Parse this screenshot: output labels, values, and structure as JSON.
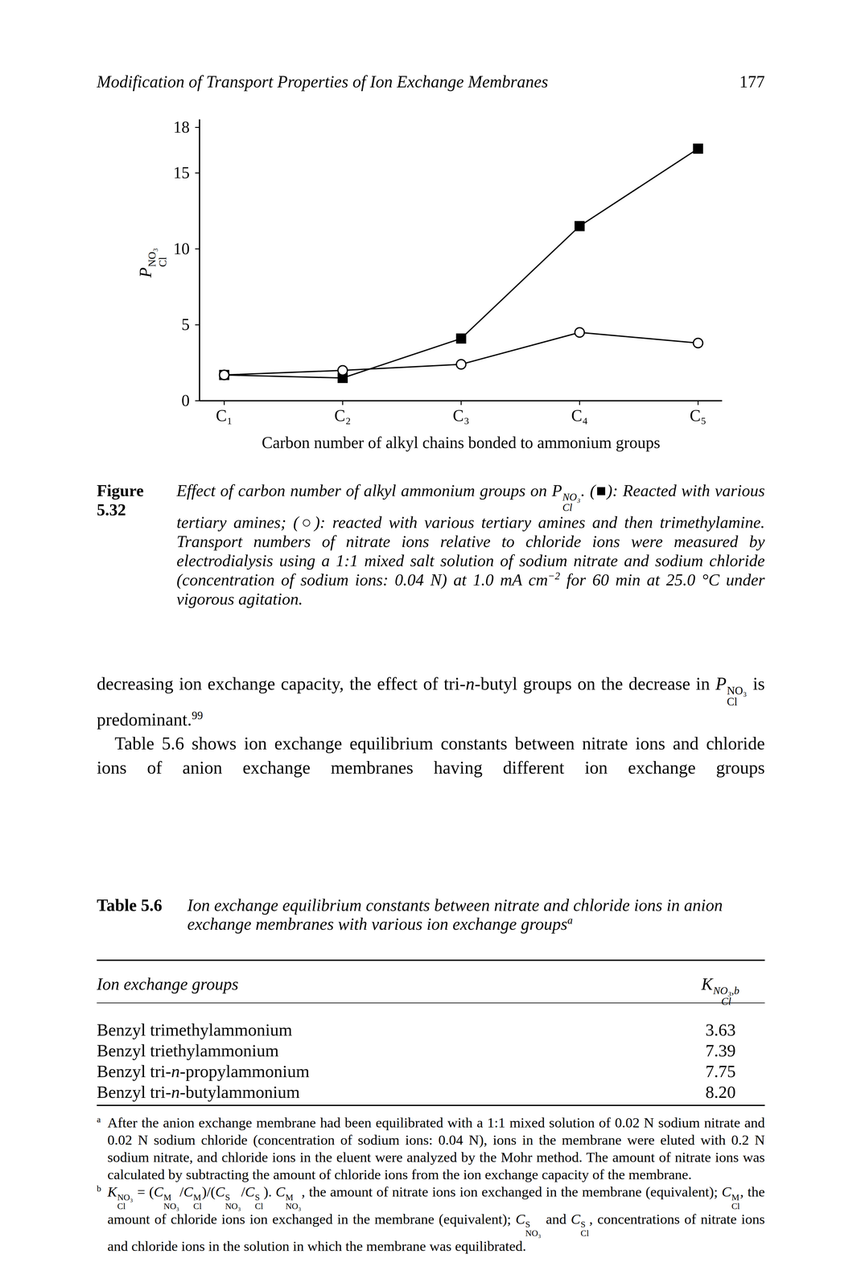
{
  "header": {
    "title": "Modification of Transport Properties of Ion Exchange Membranes",
    "page": "177"
  },
  "chart_data": {
    "type": "line",
    "x_label": "Carbon number of alkyl chains bonded to ammonium groups",
    "y_label": {
      "base": "P",
      "sub": "Cl",
      "sup": "NO₃"
    },
    "categories": [
      "C₁",
      "C₂",
      "C₃",
      "C₄",
      "C₅"
    ],
    "series": [
      {
        "color": "#000000",
        "marker": "filled_square",
        "values": [
          1.7,
          1.5,
          4.1,
          11.5,
          16.6
        ]
      },
      {
        "color": "#000000",
        "marker": "open_circle",
        "values": [
          1.7,
          2.0,
          2.4,
          4.5,
          3.8
        ]
      }
    ],
    "ylim": [
      0,
      18
    ],
    "yticks": [
      0,
      5,
      10,
      15,
      18
    ],
    "grid": false
  },
  "caption": {
    "label": "Figure 5.32",
    "runs": [
      "Effect of carbon number of alkyl ammonium groups on P",
      {
        "sub": "Cl",
        "sup": "NO₃"
      },
      ". (■): Reacted with various tertiary amines; (○): reacted with various tertiary amines and then trimethylamine. Transport numbers of nitrate ions relative to chloride ions were measured by electrodialysis using a 1:1 mixed salt solution of sodium nitrate and sodium chloride (concentration of sodium ions: 0.04 N) at 1.0 mA cm",
      {
        "sup": "−2"
      },
      " for 60 min at 25.0 °C under vigorous agitation."
    ]
  },
  "body": [
    [
      "decreasing ion exchange capacity, the effect of tri-",
      {
        "i": "n"
      },
      "-butyl groups on the decrease in ",
      {
        "base": "P",
        "sub": "Cl",
        "sup": "NO₃"
      },
      " is predominant.",
      {
        "sup": "99"
      }
    ],
    [
      "Table 5.6 shows ion exchange equilibrium constants between nitrate ions and chloride ions of anion exchange membranes having different ion exchange groups"
    ]
  ],
  "table": {
    "label": "Table 5.6",
    "title": [
      "Ion exchange equilibrium constants between nitrate and chloride ions in anion exchange membranes with various ion exchange groups",
      {
        "sup": "a"
      }
    ],
    "columns": [
      [
        "Ion exchange groups"
      ],
      [
        {
          "base": "K",
          "sub": "Cl",
          "sup": "NO₃,b"
        }
      ]
    ],
    "rows": [
      [
        [
          "Benzyl trimethylammonium"
        ],
        [
          "3.63"
        ]
      ],
      [
        [
          "Benzyl triethylammonium"
        ],
        [
          "7.39"
        ]
      ],
      [
        [
          "Benzyl tri-",
          {
            "i": "n"
          },
          "-propylammonium"
        ],
        [
          "7.75"
        ]
      ],
      [
        [
          "Benzyl tri-",
          {
            "i": "n"
          },
          "-butylammonium"
        ],
        [
          "8.20"
        ]
      ]
    ]
  },
  "footnotes": [
    {
      "mark": "a",
      "runs": [
        "After the anion exchange membrane had been equilibrated with a 1:1 mixed solution of 0.02 N sodium nitrate and 0.02 N sodium chloride (concentration of sodium ions: 0.04 N), ions in the membrane were eluted with 0.2 N sodium nitrate, and chloride ions in the eluent were analyzed by the Mohr method. The amount of nitrate ions was calculated by subtracting the amount of chloride ions from the ion exchange capacity of the membrane."
      ]
    },
    {
      "mark": "b",
      "runs": [
        {
          "base": "K",
          "sub": "Cl",
          "sup": "NO₃"
        },
        " = (",
        {
          "base": "C",
          "sub": "NO₃",
          "sup": "M"
        },
        "/",
        {
          "base": "C",
          "sub": "Cl",
          "sup": "M"
        },
        ")/(",
        {
          "base": "C",
          "sub": "NO₃",
          "sup": "S"
        },
        "/",
        {
          "base": "C",
          "sub": "Cl",
          "sup": "S"
        },
        "). ",
        {
          "base": "C",
          "sub": "NO₃",
          "sup": "M"
        },
        ", the amount of nitrate ions ion exchanged in the membrane (equivalent); ",
        {
          "base": "C",
          "sub": "Cl",
          "sup": "M"
        },
        ", the amount of chloride ions ion exchanged in the membrane (equivalent); ",
        {
          "base": "C",
          "sub": "NO₃",
          "sup": "S"
        },
        " and ",
        {
          "base": "C",
          "sub": "Cl",
          "sup": "S"
        },
        ", concentrations of nitrate ions and chloride ions in the solution in which the membrane was equilibrated."
      ]
    }
  ]
}
